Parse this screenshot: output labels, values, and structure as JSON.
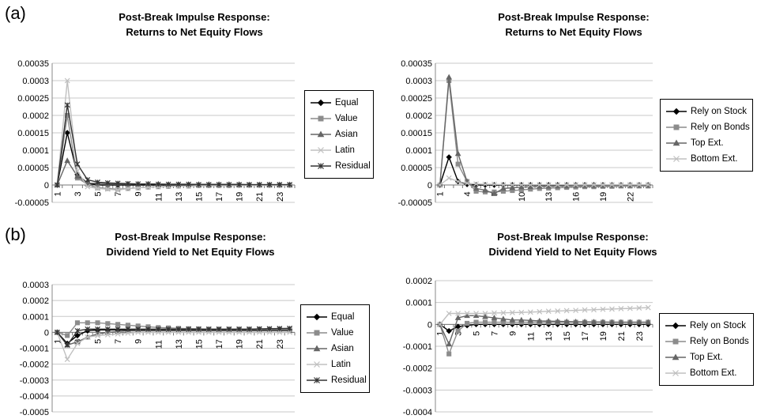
{
  "panel_labels": {
    "a": "(a)",
    "b": "(b)"
  },
  "chart_data": [
    {
      "id": "a-left",
      "type": "line",
      "title_line1": "Post-Break Impulse Response:",
      "title_line2": "Returns to Net Equity Flows",
      "ylim": [
        -5e-05,
        0.00035
      ],
      "yticks": [
        -5e-05,
        0,
        5e-05,
        0.0001,
        0.00015,
        0.0002,
        0.00025,
        0.0003,
        0.00035
      ],
      "ytick_labels": [
        "-0.00005",
        "0",
        "0.00005",
        "0.0001",
        "0.00015",
        "0.0002",
        "0.00025",
        "0.0003",
        "0.00035"
      ],
      "x": [
        1,
        2,
        3,
        4,
        5,
        6,
        7,
        8,
        9,
        10,
        11,
        12,
        13,
        14,
        15,
        16,
        17,
        18,
        19,
        20,
        21,
        22,
        23,
        24
      ],
      "xtick_labels": [
        "1",
        "3",
        "5",
        "7",
        "9",
        "11",
        "13",
        "15",
        "17",
        "19",
        "21",
        "23"
      ],
      "series": [
        {
          "name": "Equal",
          "color": "#000000",
          "marker": "diamond",
          "values": [
            0,
            0.00015,
            3e-05,
            5e-06,
            0,
            0,
            0,
            0,
            0,
            0,
            0,
            0,
            0,
            0,
            0,
            0,
            0,
            0,
            0,
            0,
            0,
            0,
            0,
            0
          ]
        },
        {
          "name": "Value",
          "color": "#8c8c8c",
          "marker": "square",
          "values": [
            0,
            0.0002,
            2e-05,
            2e-06,
            -8e-06,
            -1e-05,
            -1.2e-05,
            -1e-05,
            -8e-06,
            -6e-06,
            -5e-06,
            -4e-06,
            -3e-06,
            -3e-06,
            -2e-06,
            -2e-06,
            -2e-06,
            -2e-06,
            -1e-06,
            -1e-06,
            -1e-06,
            -1e-06,
            -1e-06,
            -1e-06
          ]
        },
        {
          "name": "Asian",
          "color": "#666666",
          "marker": "triangle",
          "values": [
            0,
            7e-05,
            2.5e-05,
            5e-06,
            5e-06,
            4e-06,
            4e-06,
            3e-06,
            3e-06,
            3e-06,
            3e-06,
            2e-06,
            2e-06,
            2e-06,
            2e-06,
            2e-06,
            2e-06,
            2e-06,
            2e-06,
            1e-06,
            1e-06,
            1e-06,
            1e-06,
            1e-06
          ]
        },
        {
          "name": "Latin",
          "color": "#c0c0c0",
          "marker": "x",
          "values": [
            0,
            0.0003,
            4e-05,
            -5e-06,
            -1e-05,
            -1.2e-05,
            -1.5e-05,
            -1e-05,
            -8e-06,
            -6e-06,
            -5e-06,
            -4e-06,
            -3e-06,
            -3e-06,
            -2e-06,
            -2e-06,
            -2e-06,
            -2e-06,
            -1e-06,
            -1e-06,
            -1e-06,
            -1e-06,
            -1e-06,
            -1e-06
          ]
        },
        {
          "name": "Residual",
          "color": "#333333",
          "marker": "star",
          "values": [
            0,
            0.00023,
            6e-05,
            1.5e-05,
            8e-06,
            6e-06,
            5e-06,
            4e-06,
            3e-06,
            3e-06,
            2e-06,
            2e-06,
            2e-06,
            2e-06,
            1e-06,
            1e-06,
            1e-06,
            1e-06,
            1e-06,
            1e-06,
            1e-06,
            1e-06,
            1e-06,
            1e-06
          ]
        }
      ]
    },
    {
      "id": "a-right",
      "type": "line",
      "title_line1": "Post-Break Impulse Response:",
      "title_line2": "Returns to Net Equity Flows",
      "ylim": [
        -5e-05,
        0.00035
      ],
      "yticks": [
        -5e-05,
        0,
        5e-05,
        0.0001,
        0.00015,
        0.0002,
        0.00025,
        0.0003,
        0.00035
      ],
      "ytick_labels": [
        "-0.00005",
        "0",
        "0.00005",
        "0.0001",
        "0.00015",
        "0.0002",
        "0.00025",
        "0.0003",
        "0.00035"
      ],
      "x": [
        1,
        2,
        3,
        4,
        5,
        6,
        7,
        8,
        9,
        10,
        11,
        12,
        13,
        14,
        15,
        16,
        17,
        18,
        19,
        20,
        21,
        22,
        23,
        24
      ],
      "xtick_labels": [
        "1",
        "4",
        "7",
        "10",
        "13",
        "16",
        "19",
        "22"
      ],
      "xtick_step": 3,
      "series": [
        {
          "name": "Rely on Stock",
          "color": "#000000",
          "marker": "diamond",
          "values": [
            0,
            8e-05,
            1e-05,
            2e-06,
            0,
            0,
            0,
            0,
            0,
            0,
            0,
            0,
            0,
            0,
            0,
            0,
            0,
            0,
            0,
            0,
            0,
            0,
            0,
            0
          ]
        },
        {
          "name": "Rely on Bonds",
          "color": "#8c8c8c",
          "marker": "square",
          "values": [
            0,
            0.0003,
            6e-05,
            1e-05,
            -1.8e-05,
            -2e-05,
            -2e-05,
            -1.8e-05,
            -1.6e-05,
            -1.4e-05,
            -1.2e-05,
            -1e-05,
            -9e-06,
            -8e-06,
            -7e-06,
            -6e-06,
            -5e-06,
            -5e-06,
            -4e-06,
            -4e-06,
            -3e-06,
            -3e-06,
            -3e-06,
            -3e-06
          ]
        },
        {
          "name": "Top Ext.",
          "color": "#666666",
          "marker": "triangle",
          "values": [
            0,
            0.00031,
            9e-05,
            1e-05,
            -1e-05,
            -1.5e-05,
            -2.5e-05,
            -1e-05,
            -8e-06,
            -6e-06,
            -5e-06,
            -4e-06,
            -4e-06,
            -3e-06,
            -3e-06,
            -2e-06,
            -2e-06,
            -2e-06,
            -2e-06,
            -1e-06,
            -1e-06,
            -1e-06,
            -1e-06,
            -1e-06
          ]
        },
        {
          "name": "Bottom Ext.",
          "color": "#c0c0c0",
          "marker": "x",
          "values": [
            0,
            2e-05,
            1e-05,
            5e-06,
            3e-06,
            2e-06,
            2e-06,
            1e-06,
            1e-06,
            1e-06,
            1e-06,
            1e-06,
            1e-06,
            1e-06,
            1e-06,
            1e-06,
            1e-06,
            1e-06,
            1e-06,
            1e-06,
            1e-06,
            1e-06,
            1e-06,
            1e-06
          ]
        }
      ]
    },
    {
      "id": "b-left",
      "type": "line",
      "title_line1": "Post-Break Impulse Response:",
      "title_line2": "Dividend Yield to Net Equity Flows",
      "ylim": [
        -0.0005,
        0.0003
      ],
      "yticks": [
        -0.0005,
        -0.0004,
        -0.0003,
        -0.0002,
        -0.0001,
        0,
        0.0001,
        0.0002,
        0.0003
      ],
      "ytick_labels": [
        "-0.0005",
        "-0.0004",
        "-0.0003",
        "-0.0002",
        "-0.0001",
        "0",
        "0.0001",
        "0.0002",
        "0.0003"
      ],
      "x": [
        1,
        2,
        3,
        4,
        5,
        6,
        7,
        8,
        9,
        10,
        11,
        12,
        13,
        14,
        15,
        16,
        17,
        18,
        19,
        20,
        21,
        22,
        23,
        24
      ],
      "xtick_labels": [
        "1",
        "3",
        "5",
        "7",
        "9",
        "11",
        "13",
        "15",
        "17",
        "19",
        "21",
        "23"
      ],
      "series": [
        {
          "name": "Equal",
          "color": "#000000",
          "marker": "diamond",
          "values": [
            0,
            -7e-05,
            -2e-05,
            1e-05,
            1.5e-05,
            1.5e-05,
            1.5e-05,
            1.5e-05,
            1.5e-05,
            1.5e-05,
            1.5e-05,
            1.5e-05,
            1.5e-05,
            1.5e-05,
            1.5e-05,
            1.5e-05,
            1.5e-05,
            1.5e-05,
            1.6e-05,
            1.6e-05,
            1.6e-05,
            1.7e-05,
            1.7e-05,
            1.8e-05
          ]
        },
        {
          "name": "Value",
          "color": "#8c8c8c",
          "marker": "square",
          "values": [
            0,
            -2e-05,
            6e-05,
            6e-05,
            6e-05,
            5.5e-05,
            5e-05,
            4.5e-05,
            4e-05,
            3.5e-05,
            3e-05,
            2.8e-05,
            2.5e-05,
            2.3e-05,
            2.2e-05,
            2e-05,
            2e-05,
            2e-05,
            2e-05,
            2e-05,
            2e-05,
            2e-05,
            2e-05,
            2e-05
          ]
        },
        {
          "name": "Asian",
          "color": "#666666",
          "marker": "triangle",
          "values": [
            0,
            -8e-05,
            -6e-05,
            -3e-05,
            -1e-05,
            0,
            5e-06,
            1e-05,
            1e-05,
            1e-05,
            1e-05,
            1e-05,
            1e-05,
            1e-05,
            1e-05,
            1e-05,
            1e-05,
            1e-05,
            1e-05,
            1e-05,
            1e-05,
            1e-05,
            1e-05,
            1e-05
          ]
        },
        {
          "name": "Latin",
          "color": "#c0c0c0",
          "marker": "x",
          "values": [
            0,
            -0.00017,
            -7e-05,
            -3e-05,
            -2e-05,
            -1.5e-05,
            -1e-05,
            -5e-06,
            0,
            0,
            0,
            0,
            0,
            0,
            0,
            0,
            0,
            0,
            0,
            0,
            0,
            0,
            0,
            0
          ]
        },
        {
          "name": "Residual",
          "color": "#333333",
          "marker": "star",
          "values": [
            0,
            -8e-05,
            1e-05,
            2e-05,
            2e-05,
            2e-05,
            2e-05,
            2e-05,
            2e-05,
            2e-05,
            2e-05,
            2e-05,
            2e-05,
            2e-05,
            2e-05,
            2e-05,
            2e-05,
            2e-05,
            2e-05,
            2e-05,
            2.2e-05,
            2.3e-05,
            2.4e-05,
            2.5e-05
          ]
        }
      ]
    },
    {
      "id": "b-right",
      "type": "line",
      "title_line1": "Post-Break Impulse Response:",
      "title_line2": "Dividend Yield to Net Equity Flows",
      "ylim": [
        -0.0004,
        0.0002
      ],
      "yticks": [
        -0.0004,
        -0.0003,
        -0.0002,
        -0.0001,
        0,
        0.0001,
        0.0002
      ],
      "ytick_labels": [
        "-0.0004",
        "-0.0003",
        "-0.0002",
        "-0.0001",
        "0",
        "0.0001",
        "0.0002"
      ],
      "x": [
        1,
        2,
        3,
        4,
        5,
        6,
        7,
        8,
        9,
        10,
        11,
        12,
        13,
        14,
        15,
        16,
        17,
        18,
        19,
        20,
        21,
        22,
        23,
        24
      ],
      "xtick_labels": [
        "1",
        "3",
        "5",
        "7",
        "9",
        "11",
        "13",
        "15",
        "17",
        "19",
        "21",
        "23"
      ],
      "series": [
        {
          "name": "Rely on Stock",
          "color": "#000000",
          "marker": "diamond",
          "values": [
            0,
            -3e-05,
            -1e-05,
            -5e-06,
            0,
            0,
            0,
            0,
            0,
            0,
            0,
            0,
            0,
            0,
            0,
            0,
            0,
            0,
            0,
            0,
            0,
            0,
            0,
            0
          ]
        },
        {
          "name": "Rely on Bonds",
          "color": "#8c8c8c",
          "marker": "square",
          "values": [
            0,
            -0.000135,
            -3e-05,
            5e-06,
            1e-05,
            1e-05,
            1e-05,
            1e-05,
            1e-05,
            1e-05,
            1e-05,
            1e-05,
            1e-05,
            1e-05,
            1e-05,
            1e-05,
            1e-05,
            1e-05,
            1e-05,
            1e-05,
            1e-05,
            1e-05,
            1e-05,
            1e-05
          ]
        },
        {
          "name": "Top Ext.",
          "color": "#666666",
          "marker": "triangle",
          "values": [
            0,
            -9e-05,
            3e-05,
            4e-05,
            4e-05,
            3.5e-05,
            3e-05,
            2.5e-05,
            2e-05,
            2e-05,
            1.8e-05,
            1.6e-05,
            1.5e-05,
            1.4e-05,
            1.3e-05,
            1.2e-05,
            1.2e-05,
            1.1e-05,
            1.1e-05,
            1e-05,
            1e-05,
            1e-05,
            1e-05,
            1e-05
          ]
        },
        {
          "name": "Bottom Ext.",
          "color": "#c0c0c0",
          "marker": "x",
          "values": [
            0,
            5e-05,
            5e-05,
            5e-05,
            5e-05,
            5e-05,
            5.2e-05,
            5.3e-05,
            5.4e-05,
            5.5e-05,
            5.6e-05,
            5.8e-05,
            6e-05,
            6.1e-05,
            6.3e-05,
            6.4e-05,
            6.6e-05,
            6.7e-05,
            6.9e-05,
            7e-05,
            7.2e-05,
            7.3e-05,
            7.5e-05,
            7.7e-05
          ]
        }
      ]
    }
  ]
}
